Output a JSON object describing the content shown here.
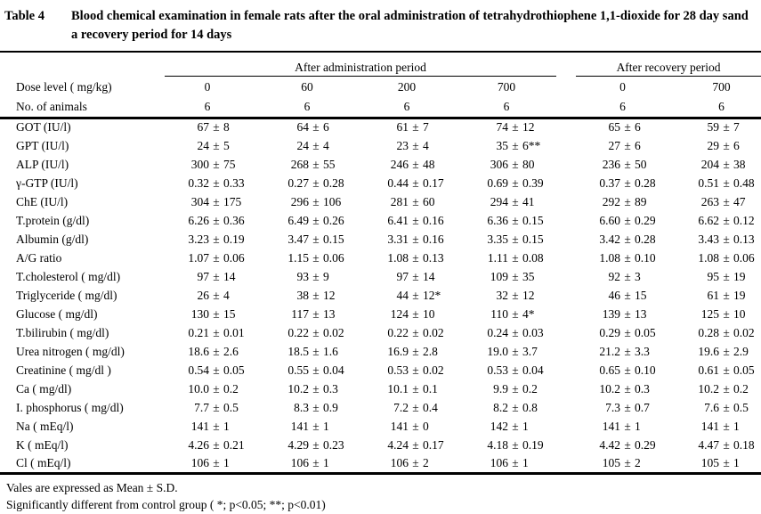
{
  "title": {
    "label": "Table 4",
    "text": "Blood chemical examination in female rats after the oral administration of tetrahydrothiophene 1,1-dioxide for 28 day sand a recovery period for 14 days"
  },
  "header": {
    "admin_group": "After administration period",
    "recovery_group": "After recovery period",
    "dose_label": "Dose level ( mg/kg)",
    "doses": [
      "0",
      "60",
      "200",
      "700",
      "0",
      "700"
    ],
    "animals_label": "No. of animals",
    "animals": [
      "6",
      "6",
      "6",
      "6",
      "6",
      "6"
    ]
  },
  "pm_sign": "±",
  "rows": [
    {
      "param": "GOT (IU/l)",
      "cells": [
        [
          "67",
          "8"
        ],
        [
          "64",
          "6"
        ],
        [
          "61",
          "7"
        ],
        [
          "74",
          "12"
        ],
        [
          "65",
          "6"
        ],
        [
          "59",
          "7"
        ]
      ]
    },
    {
      "param": "GPT (IU/l)",
      "cells": [
        [
          "24",
          "5"
        ],
        [
          "24",
          "4"
        ],
        [
          "23",
          "4"
        ],
        [
          "35",
          "6**"
        ],
        [
          "27",
          "6"
        ],
        [
          "29",
          "6"
        ]
      ]
    },
    {
      "param": "ALP (IU/l)",
      "cells": [
        [
          "300",
          "75"
        ],
        [
          "268",
          "55"
        ],
        [
          "246",
          "48"
        ],
        [
          "306",
          "80"
        ],
        [
          "236",
          "50"
        ],
        [
          "204",
          "38"
        ]
      ]
    },
    {
      "param": "γ-GTP (IU/l)",
      "cells": [
        [
          "0.32",
          "0.33"
        ],
        [
          "0.27",
          "0.28"
        ],
        [
          "0.44",
          "0.17"
        ],
        [
          "0.69",
          "0.39"
        ],
        [
          "0.37",
          "0.28"
        ],
        [
          "0.51",
          "0.48"
        ]
      ]
    },
    {
      "param": "ChE (IU/l)",
      "cells": [
        [
          "304",
          "175"
        ],
        [
          "296",
          "106"
        ],
        [
          "281",
          "60"
        ],
        [
          "294",
          "41"
        ],
        [
          "292",
          "89"
        ],
        [
          "263",
          "47"
        ]
      ]
    },
    {
      "param": "T.protein (g/dl)",
      "cells": [
        [
          "6.26",
          "0.36"
        ],
        [
          "6.49",
          "0.26"
        ],
        [
          "6.41",
          "0.16"
        ],
        [
          "6.36",
          "0.15"
        ],
        [
          "6.60",
          "0.29"
        ],
        [
          "6.62",
          "0.12"
        ]
      ]
    },
    {
      "param": "Albumin (g/dl)",
      "cells": [
        [
          "3.23",
          "0.19"
        ],
        [
          "3.47",
          "0.15"
        ],
        [
          "3.31",
          "0.16"
        ],
        [
          "3.35",
          "0.15"
        ],
        [
          "3.42",
          "0.28"
        ],
        [
          "3.43",
          "0.13"
        ]
      ]
    },
    {
      "param": "A/G ratio",
      "cells": [
        [
          "1.07",
          "0.06"
        ],
        [
          "1.15",
          "0.06"
        ],
        [
          "1.08",
          "0.13"
        ],
        [
          "1.11",
          "0.08"
        ],
        [
          "1.08",
          "0.10"
        ],
        [
          "1.08",
          "0.06"
        ]
      ]
    },
    {
      "param": "T.cholesterol ( mg/dl)",
      "cells": [
        [
          "97",
          "14"
        ],
        [
          "93",
          "9"
        ],
        [
          "97",
          "14"
        ],
        [
          "109",
          "35"
        ],
        [
          "92",
          "3"
        ],
        [
          "95",
          "19"
        ]
      ]
    },
    {
      "param": "Triglyceride ( mg/dl)",
      "cells": [
        [
          "26",
          "4"
        ],
        [
          "38",
          "12"
        ],
        [
          "44",
          "12*"
        ],
        [
          "32",
          "12"
        ],
        [
          "46",
          "15"
        ],
        [
          "61",
          "19"
        ]
      ]
    },
    {
      "param": "Glucose ( mg/dl)",
      "cells": [
        [
          "130",
          "15"
        ],
        [
          "117",
          "13"
        ],
        [
          "124",
          "10"
        ],
        [
          "110",
          "4*"
        ],
        [
          "139",
          "13"
        ],
        [
          "125",
          "10"
        ]
      ]
    },
    {
      "param": "T.bilirubin ( mg/dl)",
      "cells": [
        [
          "0.21",
          "0.01"
        ],
        [
          "0.22",
          "0.02"
        ],
        [
          "0.22",
          "0.02"
        ],
        [
          "0.24",
          "0.03"
        ],
        [
          "0.29",
          "0.05"
        ],
        [
          "0.28",
          "0.02"
        ]
      ]
    },
    {
      "param": "Urea nitrogen ( mg/dl)",
      "cells": [
        [
          "18.6",
          "2.6"
        ],
        [
          "18.5",
          "1.6"
        ],
        [
          "16.9",
          "2.8"
        ],
        [
          "19.0",
          "3.7"
        ],
        [
          "21.2",
          "3.3"
        ],
        [
          "19.6",
          "2.9"
        ]
      ]
    },
    {
      "param": "Creatinine ( mg/dl )",
      "cells": [
        [
          "0.54",
          "0.05"
        ],
        [
          "0.55",
          "0.04"
        ],
        [
          "0.53",
          "0.02"
        ],
        [
          "0.53",
          "0.04"
        ],
        [
          "0.65",
          "0.10"
        ],
        [
          "0.61",
          "0.05"
        ]
      ]
    },
    {
      "param": "Ca ( mg/dl)",
      "cells": [
        [
          "10.0",
          "0.2"
        ],
        [
          "10.2",
          "0.3"
        ],
        [
          "10.1",
          "0.1"
        ],
        [
          "9.9",
          "0.2"
        ],
        [
          "10.2",
          "0.3"
        ],
        [
          "10.2",
          "0.2"
        ]
      ]
    },
    {
      "param": "I. phosphorus ( mg/dl)",
      "cells": [
        [
          "7.7",
          "0.5"
        ],
        [
          "8.3",
          "0.9"
        ],
        [
          "7.2",
          "0.4"
        ],
        [
          "8.2",
          "0.8"
        ],
        [
          "7.3",
          "0.7"
        ],
        [
          "7.6",
          "0.5"
        ]
      ]
    },
    {
      "param": "Na ( mEq/l)",
      "cells": [
        [
          "141",
          "1"
        ],
        [
          "141",
          "1"
        ],
        [
          "141",
          "0"
        ],
        [
          "142",
          "1"
        ],
        [
          "141",
          "1"
        ],
        [
          "141",
          "1"
        ]
      ]
    },
    {
      "param": "K ( mEq/l)",
      "cells": [
        [
          "4.26",
          "0.21"
        ],
        [
          "4.29",
          "0.23"
        ],
        [
          "4.24",
          "0.17"
        ],
        [
          "4.18",
          "0.19"
        ],
        [
          "4.42",
          "0.29"
        ],
        [
          "4.47",
          "0.18"
        ]
      ]
    },
    {
      "param": "Cl ( mEq/l)",
      "cells": [
        [
          "106",
          "1"
        ],
        [
          "106",
          "1"
        ],
        [
          "106",
          "2"
        ],
        [
          "106",
          "1"
        ],
        [
          "105",
          "2"
        ],
        [
          "105",
          "1"
        ]
      ]
    }
  ],
  "footnotes": [
    "Vales are expressed as Mean ± S.D.",
    "Significantly different from control group ( *; p<0.05; **; p<0.01)"
  ]
}
